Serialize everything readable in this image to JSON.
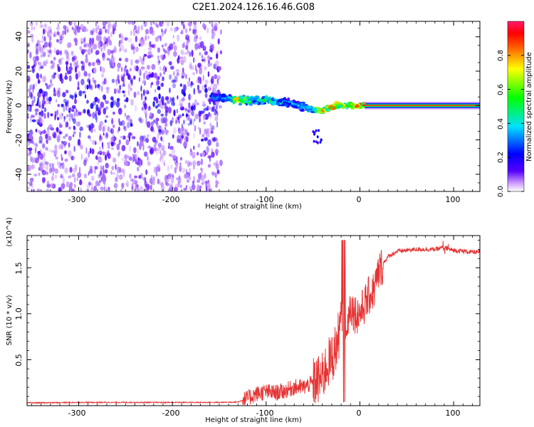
{
  "title": "C2E1.2024.126.16.46.G08",
  "chart_data": [
    {
      "type": "heatmap",
      "xlabel": "Height of straight line (km)",
      "ylabel": "Frequency (Hz)",
      "xlim": [
        -355,
        128
      ],
      "ylim": [
        -50,
        49
      ],
      "x_ticks": [
        -300,
        -200,
        -100,
        0,
        100
      ],
      "x_tick_labels": [
        "-300",
        "-200",
        "-100",
        "0",
        "100"
      ],
      "y_ticks": [
        -40,
        -20,
        0,
        20,
        40
      ],
      "y_tick_labels": [
        "-40",
        "-20",
        "0",
        "20",
        "40"
      ],
      "colorbar": {
        "label": "Normalized spectral amplitude",
        "range": [
          0,
          1
        ],
        "ticks": [
          0.0,
          0.2,
          0.4,
          0.6,
          0.8
        ],
        "tick_labels": [
          "0.0",
          "0.2",
          "0.4",
          "0.6",
          "0.8"
        ],
        "colors": [
          "#ffffff",
          "#cc99ff",
          "#5500ff",
          "#0000ff",
          "#00e0ff",
          "#00ff00",
          "#ffff00",
          "#ff6600",
          "#ff0000",
          "#ff1a6a"
        ]
      },
      "noise_region_x": [
        -355,
        -148
      ],
      "trace": [
        {
          "x": -155,
          "y": 5,
          "amp": 0.35
        },
        {
          "x": -140,
          "y": 4,
          "amp": 0.4
        },
        {
          "x": -130,
          "y": 3,
          "amp": 0.85
        },
        {
          "x": -115,
          "y": 3,
          "amp": 0.45
        },
        {
          "x": -100,
          "y": 3,
          "amp": 0.5
        },
        {
          "x": -85,
          "y": 2,
          "amp": 0.45
        },
        {
          "x": -70,
          "y": 1,
          "amp": 0.4
        },
        {
          "x": -55,
          "y": -2,
          "amp": 0.4
        },
        {
          "x": -40,
          "y": -3,
          "amp": 0.8
        },
        {
          "x": -25,
          "y": 0,
          "amp": 0.85
        },
        {
          "x": -10,
          "y": 0,
          "amp": 0.8
        },
        {
          "x": 5,
          "y": 0,
          "amp": 0.9
        },
        {
          "x": 128,
          "y": 0,
          "amp": 0.9
        }
      ]
    },
    {
      "type": "line",
      "xlabel": "Height of straight line (km)",
      "ylabel": "SNR (10 * v/v)",
      "y_scale_label": "(x10^4)",
      "xlim": [
        -355,
        128
      ],
      "ylim": [
        0,
        1.85
      ],
      "x_ticks": [
        -300,
        -200,
        -100,
        0,
        100
      ],
      "x_tick_labels": [
        "-300",
        "-200",
        "-100",
        "0",
        "100"
      ],
      "y_ticks": [
        0.5,
        1.0,
        1.5
      ],
      "y_tick_labels": [
        "0.5",
        "1.0",
        "1.5"
      ],
      "color": "#e53333",
      "series": [
        {
          "x": [
            -355,
            -300,
            -250,
            -200,
            -150,
            -130,
            -120,
            -110,
            -100,
            -90,
            -80,
            -70,
            -60,
            -50,
            -40,
            -35,
            -30,
            -25,
            -20,
            -17,
            -15,
            -12,
            -10,
            -5,
            0,
            5,
            10,
            15,
            20,
            25,
            30,
            40,
            50,
            60,
            70,
            80,
            90,
            95,
            100,
            110,
            120,
            128
          ],
          "values": [
            0.03,
            0.035,
            0.035,
            0.035,
            0.035,
            0.04,
            0.08,
            0.13,
            0.15,
            0.14,
            0.16,
            0.2,
            0.2,
            0.25,
            0.3,
            0.45,
            0.5,
            0.65,
            0.9,
            1.1,
            0.7,
            1.0,
            1.1,
            1.0,
            1.0,
            1.1,
            1.2,
            1.25,
            1.45,
            1.55,
            1.62,
            1.68,
            1.69,
            1.7,
            1.7,
            1.7,
            1.72,
            1.7,
            1.69,
            1.68,
            1.67,
            1.67
          ]
        }
      ]
    }
  ]
}
